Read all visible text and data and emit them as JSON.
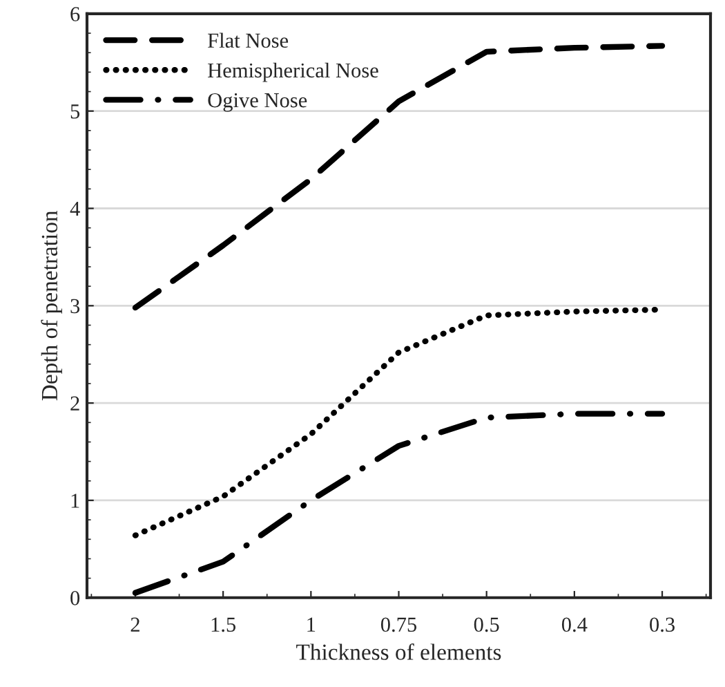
{
  "chart_data": {
    "type": "line",
    "xlabel": "Thickness of elements",
    "ylabel": "Depth of penetration",
    "categories": [
      "2",
      "1.5",
      "1",
      "0.75",
      "0.5",
      "0.4",
      "0.3"
    ],
    "series": [
      {
        "name": "Flat Nose",
        "color": "#000000",
        "line_style": "dashed",
        "values": [
          2.98,
          3.62,
          4.3,
          5.1,
          5.61,
          5.65,
          5.67
        ]
      },
      {
        "name": "Hemispherical Nose",
        "color": "#000000",
        "line_style": "dotted",
        "values": [
          0.64,
          1.04,
          1.68,
          2.52,
          2.9,
          2.94,
          2.96
        ]
      },
      {
        "name": "Ogive Nose",
        "color": "#000000",
        "line_style": "dashdot",
        "values": [
          0.05,
          0.37,
          1.0,
          1.56,
          1.85,
          1.89,
          1.89
        ]
      }
    ],
    "ylim": [
      0,
      6
    ],
    "yticks": [
      0,
      1,
      2,
      3,
      4,
      5,
      6
    ],
    "grid": "y",
    "legend": "top left",
    "marker": "none"
  }
}
